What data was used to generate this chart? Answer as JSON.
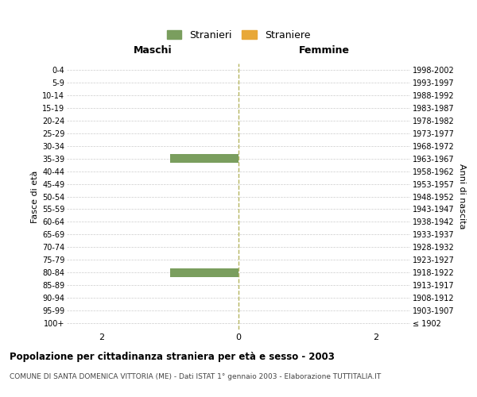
{
  "age_groups": [
    "100+",
    "95-99",
    "90-94",
    "85-89",
    "80-84",
    "75-79",
    "70-74",
    "65-69",
    "60-64",
    "55-59",
    "50-54",
    "45-49",
    "40-44",
    "35-39",
    "30-34",
    "25-29",
    "20-24",
    "15-19",
    "10-14",
    "5-9",
    "0-4"
  ],
  "birth_years": [
    "≤ 1902",
    "1903-1907",
    "1908-1912",
    "1913-1917",
    "1918-1922",
    "1923-1927",
    "1928-1932",
    "1933-1937",
    "1938-1942",
    "1943-1947",
    "1948-1952",
    "1953-1957",
    "1958-1962",
    "1963-1967",
    "1968-1972",
    "1973-1977",
    "1978-1982",
    "1983-1987",
    "1988-1992",
    "1993-1997",
    "1998-2002"
  ],
  "males": [
    0,
    0,
    0,
    0,
    1,
    0,
    0,
    0,
    0,
    0,
    0,
    0,
    0,
    1,
    0,
    0,
    0,
    0,
    0,
    0,
    0
  ],
  "females": [
    0,
    0,
    0,
    0,
    0,
    0,
    0,
    0,
    0,
    0,
    0,
    0,
    0,
    0,
    0,
    0,
    0,
    0,
    0,
    0,
    0
  ],
  "male_color": "#7a9e5e",
  "female_color": "#e8a838",
  "background_color": "#ffffff",
  "grid_color": "#cccccc",
  "center_line_color": "#b5b560",
  "xlim": 2.5,
  "title": "Popolazione per cittadinanza straniera per età e sesso - 2003",
  "subtitle": "COMUNE DI SANTA DOMENICA VITTORIA (ME) - Dati ISTAT 1° gennaio 2003 - Elaborazione TUTTITALIA.IT",
  "ylabel_left": "Fasce di età",
  "ylabel_right": "Anni di nascita",
  "xlabel_left": "Maschi",
  "xlabel_right": "Femmine",
  "legend_male": "Stranieri",
  "legend_female": "Straniere"
}
